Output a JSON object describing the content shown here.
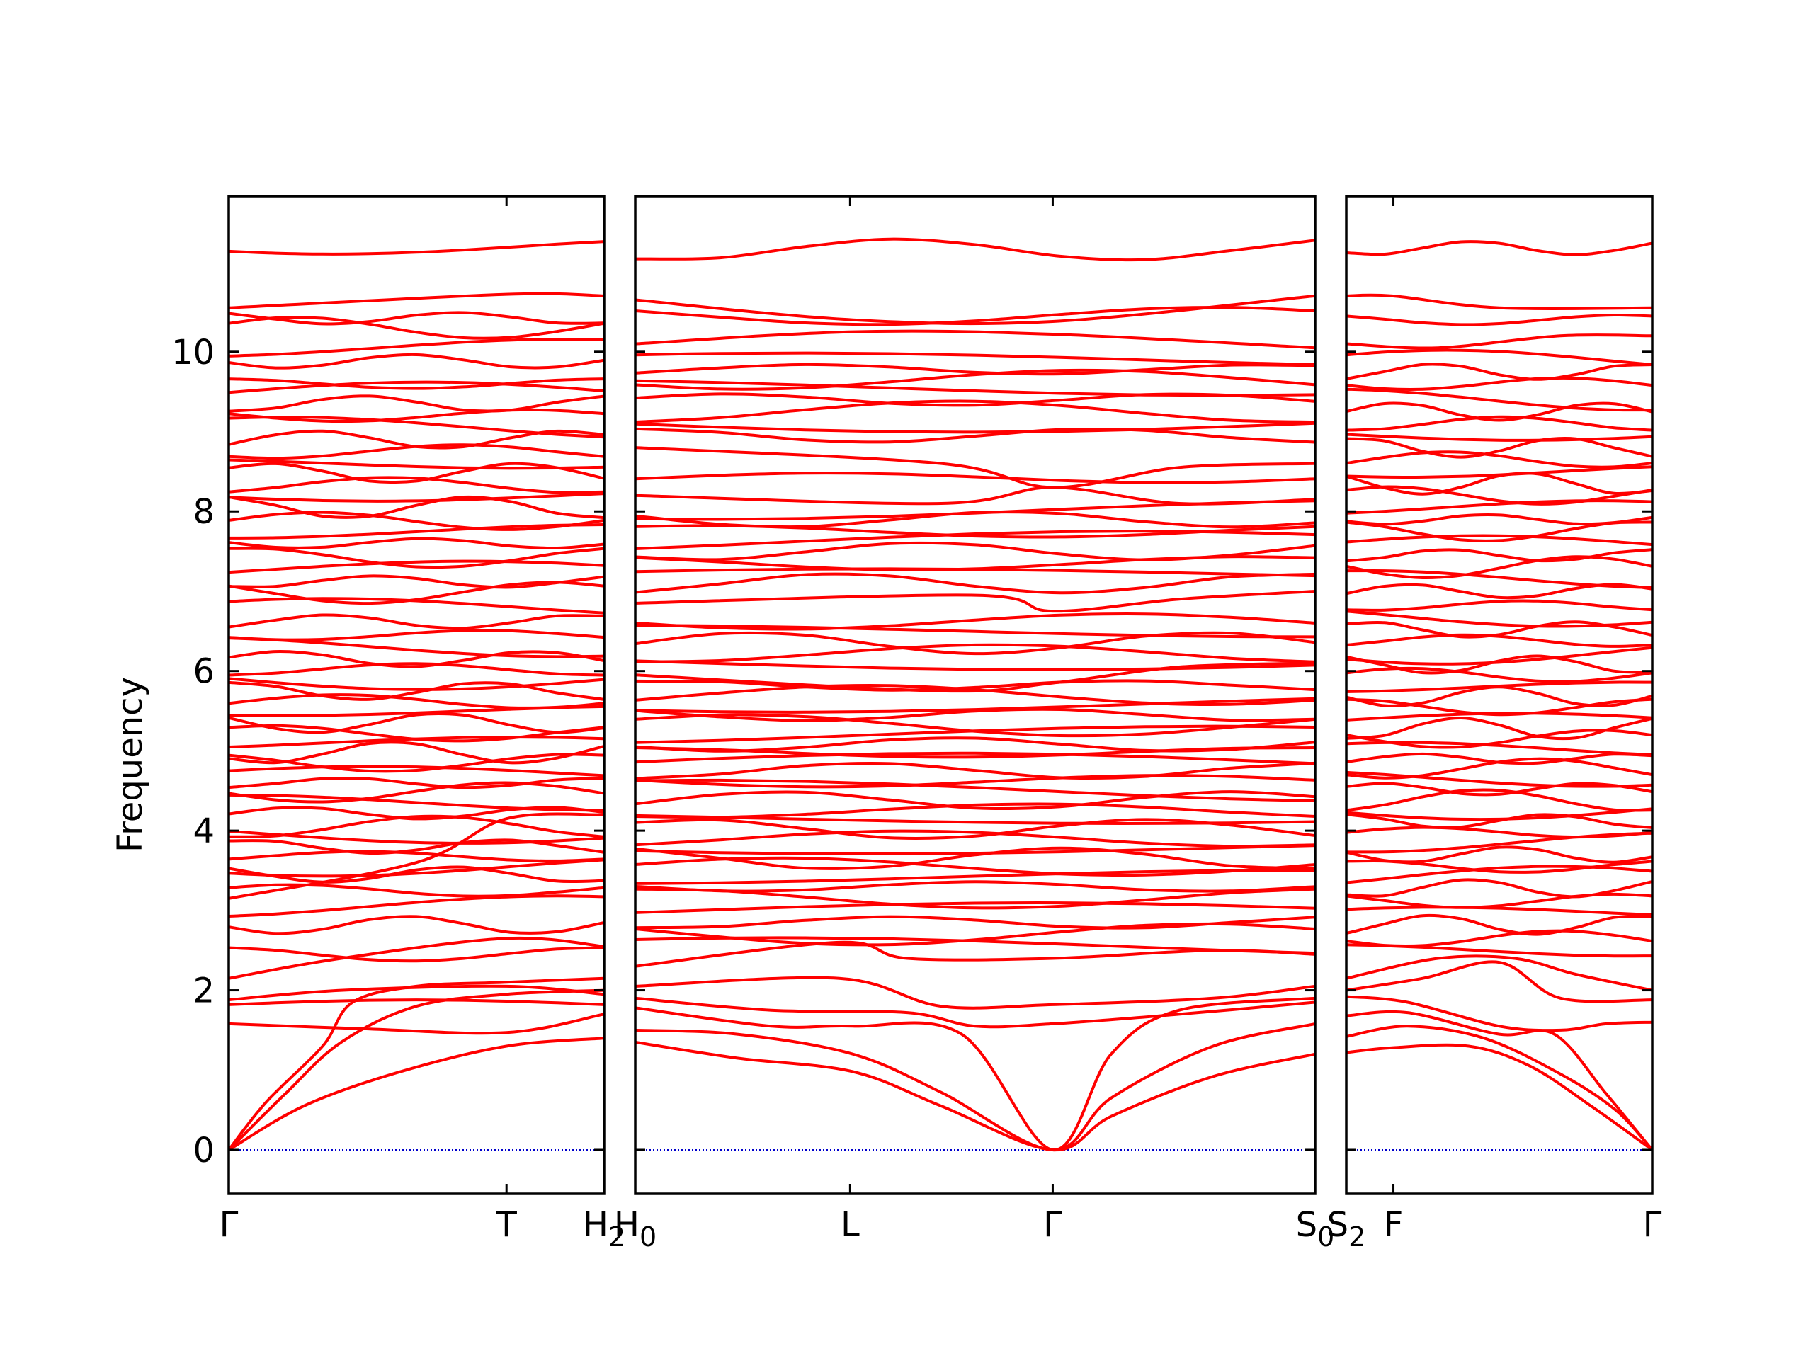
{
  "chart_data": {
    "type": "line",
    "ylabel": "Frequency",
    "ylim": [
      -0.55,
      11.95
    ],
    "yticks": [
      0,
      2,
      4,
      6,
      8,
      10
    ],
    "grid": false,
    "line_color": "#ff0000",
    "zero_line_color": "#0000cc",
    "panels": [
      {
        "name": "panel-1",
        "xlim": [
          0,
          1
        ],
        "xticks": [
          {
            "x": 0,
            "label": "Γ"
          },
          {
            "x": 0.74,
            "label": "T"
          },
          {
            "x": 1,
            "label": "H",
            "sub": "2"
          }
        ],
        "crossing_bands": [
          [
            [
              0,
              0
            ],
            [
              0.2,
              0.55
            ],
            [
              0.45,
              0.97
            ],
            [
              0.74,
              1.3
            ],
            [
              1,
              1.4
            ]
          ],
          [
            [
              0,
              0
            ],
            [
              0.15,
              0.7
            ],
            [
              0.3,
              1.35
            ],
            [
              0.5,
              1.8
            ],
            [
              0.74,
              1.95
            ],
            [
              1,
              2.0
            ]
          ],
          [
            [
              0,
              0
            ],
            [
              0.1,
              0.6
            ],
            [
              0.25,
              1.3
            ],
            [
              0.33,
              1.85
            ],
            [
              0.5,
              2.05
            ],
            [
              0.74,
              2.1
            ],
            [
              1,
              2.15
            ]
          ],
          [
            [
              0,
              1.58
            ],
            [
              0.35,
              1.52
            ],
            [
              0.74,
              1.47
            ],
            [
              1,
              1.7
            ]
          ],
          [
            [
              0,
              1.88
            ],
            [
              0.3,
              2.0
            ],
            [
              0.74,
              2.05
            ],
            [
              1,
              1.95
            ]
          ],
          [
            [
              0,
              2.15
            ],
            [
              0.3,
              2.4
            ],
            [
              0.74,
              2.65
            ],
            [
              1,
              2.55
            ]
          ],
          [
            [
              0,
              3.15
            ],
            [
              0.5,
              3.6
            ],
            [
              0.74,
              4.15
            ],
            [
              1,
              4.2
            ]
          ],
          [
            [
              0,
              10.55
            ],
            [
              0.74,
              10.72
            ],
            [
              1,
              10.7
            ]
          ]
        ],
        "flat_bands": [
          1.82,
          2.45,
          2.82,
          3.05,
          3.25,
          3.45,
          3.55,
          3.68,
          3.8,
          3.95,
          4.05,
          4.22,
          4.35,
          4.48,
          4.6,
          4.72,
          4.85,
          4.98,
          5.1,
          5.22,
          5.35,
          5.5,
          5.62,
          5.75,
          5.9,
          6.02,
          6.15,
          6.3,
          6.45,
          6.62,
          6.8,
          6.98,
          7.12,
          7.28,
          7.42,
          7.6,
          7.75,
          7.88,
          8.05,
          8.2,
          8.33,
          8.48,
          8.6,
          8.75,
          8.9,
          9.05,
          9.2,
          9.35,
          9.5,
          9.6,
          9.88,
          10.05,
          10.3,
          10.42,
          11.32
        ]
      },
      {
        "name": "panel-2",
        "xlim": [
          0,
          1
        ],
        "xticks": [
          {
            "x": 0,
            "label": "H",
            "sub": "0"
          },
          {
            "x": 0.316,
            "label": "L"
          },
          {
            "x": 0.614,
            "label": "Γ"
          },
          {
            "x": 1,
            "label": "S",
            "sub": "0"
          }
        ],
        "crossing_bands": [
          [
            [
              0,
              1.35
            ],
            [
              0.15,
              1.15
            ],
            [
              0.32,
              0.98
            ],
            [
              0.45,
              0.55
            ],
            [
              0.614,
              0
            ],
            [
              0.7,
              0.42
            ],
            [
              0.85,
              0.92
            ],
            [
              1,
              1.2
            ]
          ],
          [
            [
              0,
              1.5
            ],
            [
              0.15,
              1.45
            ],
            [
              0.32,
              1.2
            ],
            [
              0.45,
              0.72
            ],
            [
              0.614,
              0
            ],
            [
              0.7,
              0.65
            ],
            [
              0.85,
              1.3
            ],
            [
              1,
              1.58
            ]
          ],
          [
            [
              0,
              1.78
            ],
            [
              0.2,
              1.55
            ],
            [
              0.32,
              1.55
            ],
            [
              0.48,
              1.45
            ],
            [
              0.614,
              0
            ],
            [
              0.7,
              1.2
            ],
            [
              0.8,
              1.75
            ],
            [
              1,
              1.9
            ]
          ],
          [
            [
              0,
              1.9
            ],
            [
              0.2,
              1.75
            ],
            [
              0.4,
              1.72
            ],
            [
              0.5,
              1.55
            ],
            [
              0.614,
              1.58
            ],
            [
              0.8,
              1.7
            ],
            [
              1,
              1.85
            ]
          ],
          [
            [
              0,
              2.05
            ],
            [
              0.3,
              2.15
            ],
            [
              0.45,
              1.8
            ],
            [
              0.614,
              1.82
            ],
            [
              0.85,
              1.9
            ],
            [
              1,
              2.05
            ]
          ],
          [
            [
              0,
              2.3
            ],
            [
              0.3,
              2.6
            ],
            [
              0.4,
              2.4
            ],
            [
              0.614,
              2.4
            ],
            [
              0.85,
              2.5
            ],
            [
              1,
              2.45
            ]
          ],
          [
            [
              0,
              10.65
            ],
            [
              0.32,
              10.4
            ],
            [
              0.614,
              10.38
            ],
            [
              1,
              10.7
            ]
          ],
          [
            [
              0,
              10.1
            ],
            [
              0.32,
              10.25
            ],
            [
              0.614,
              10.22
            ],
            [
              1,
              10.05
            ]
          ],
          [
            [
              0,
              8.8
            ],
            [
              0.45,
              8.6
            ],
            [
              0.614,
              8.3
            ],
            [
              0.8,
              8.55
            ],
            [
              1,
              8.6
            ]
          ],
          [
            [
              0,
              8.2
            ],
            [
              0.45,
              8.1
            ],
            [
              0.614,
              8.3
            ],
            [
              0.8,
              8.1
            ],
            [
              1,
              8.15
            ]
          ],
          [
            [
              0,
              6.85
            ],
            [
              0.5,
              6.95
            ],
            [
              0.614,
              6.75
            ],
            [
              0.8,
              6.9
            ],
            [
              1,
              7.0
            ]
          ],
          [
            [
              0,
              5.95
            ],
            [
              0.45,
              5.75
            ],
            [
              0.614,
              5.85
            ],
            [
              0.8,
              6.05
            ],
            [
              1,
              6.1
            ]
          ]
        ],
        "flat_bands": [
          2.55,
          2.7,
          2.85,
          3.0,
          3.15,
          3.3,
          3.42,
          3.55,
          3.65,
          3.78,
          3.9,
          4.02,
          4.15,
          4.25,
          4.38,
          4.5,
          4.62,
          4.75,
          4.85,
          4.98,
          5.08,
          5.2,
          5.32,
          5.45,
          5.58,
          5.7,
          5.82,
          6.1,
          6.22,
          6.35,
          6.5,
          6.62,
          7.1,
          7.22,
          7.35,
          7.5,
          7.62,
          7.75,
          7.9,
          8.02,
          8.42,
          8.95,
          9.1,
          9.25,
          9.4,
          9.55,
          9.65,
          9.78,
          9.9,
          10.45,
          11.28
        ]
      },
      {
        "name": "panel-3",
        "xlim": [
          0,
          1
        ],
        "xticks": [
          {
            "x": 0,
            "label": "S",
            "sub": "2"
          },
          {
            "x": 0.154,
            "label": "F"
          },
          {
            "x": 1,
            "label": "Γ"
          }
        ],
        "crossing_bands": [
          [
            [
              0,
              1.22
            ],
            [
              0.15,
              1.28
            ],
            [
              0.4,
              1.3
            ],
            [
              0.6,
              1.05
            ],
            [
              0.8,
              0.55
            ],
            [
              1,
              0
            ]
          ],
          [
            [
              0,
              1.42
            ],
            [
              0.2,
              1.55
            ],
            [
              0.45,
              1.4
            ],
            [
              0.7,
              0.95
            ],
            [
              0.88,
              0.5
            ],
            [
              1,
              0
            ]
          ],
          [
            [
              0,
              1.68
            ],
            [
              0.2,
              1.72
            ],
            [
              0.5,
              1.45
            ],
            [
              0.68,
              1.45
            ],
            [
              0.85,
              0.7
            ],
            [
              1,
              0
            ]
          ],
          [
            [
              0,
              1.92
            ],
            [
              0.2,
              1.85
            ],
            [
              0.5,
              1.55
            ],
            [
              0.7,
              1.5
            ],
            [
              0.85,
              1.58
            ],
            [
              1,
              1.6
            ]
          ],
          [
            [
              0,
              2.0
            ],
            [
              0.25,
              2.15
            ],
            [
              0.5,
              2.35
            ],
            [
              0.7,
              1.9
            ],
            [
              1,
              1.88
            ]
          ],
          [
            [
              0,
              2.15
            ],
            [
              0.3,
              2.4
            ],
            [
              0.55,
              2.4
            ],
            [
              0.75,
              2.2
            ],
            [
              1,
              2.0
            ]
          ],
          [
            [
              0,
              10.7
            ],
            [
              0.15,
              10.7
            ],
            [
              0.5,
              10.55
            ],
            [
              1,
              10.55
            ]
          ],
          [
            [
              0,
              10.1
            ],
            [
              0.3,
              10.05
            ],
            [
              0.7,
              10.2
            ],
            [
              1,
              10.2
            ]
          ]
        ],
        "flat_bands": [
          2.5,
          2.65,
          2.82,
          2.98,
          3.12,
          3.28,
          3.42,
          3.55,
          3.7,
          3.85,
          3.98,
          4.12,
          4.25,
          4.38,
          4.52,
          4.65,
          4.78,
          4.9,
          5.02,
          5.15,
          5.28,
          5.4,
          5.55,
          5.68,
          5.8,
          5.95,
          6.08,
          6.22,
          6.38,
          6.52,
          6.68,
          6.82,
          7.0,
          7.15,
          7.3,
          7.45,
          7.6,
          7.75,
          7.9,
          8.05,
          8.2,
          8.35,
          8.5,
          8.65,
          8.8,
          8.95,
          9.1,
          9.25,
          9.4,
          9.6,
          9.75,
          9.9,
          10.4,
          11.3
        ]
      }
    ]
  }
}
